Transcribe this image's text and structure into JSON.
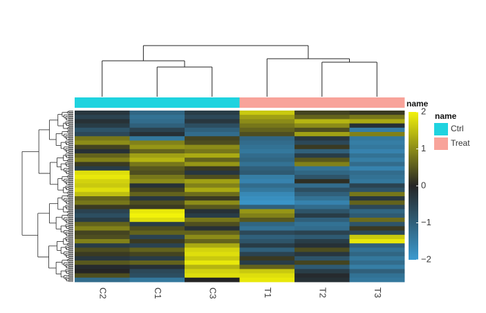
{
  "chart_data": {
    "type": "heatmap",
    "title": "",
    "columns": [
      "C2",
      "C1",
      "C3",
      "T1",
      "T2",
      "T3"
    ],
    "column_annotation": {
      "name": "name",
      "values": [
        "Ctrl",
        "Ctrl",
        "Ctrl",
        "Treat",
        "Treat",
        "Treat"
      ]
    },
    "groups": [
      {
        "name": "Ctrl",
        "color": "#1fd3df"
      },
      {
        "name": "Treat",
        "color": "#f8a39a"
      }
    ],
    "color_scale": {
      "min": -2,
      "max": 2,
      "stops": [
        {
          "value": -2,
          "color": "#3b9bd0"
        },
        {
          "value": 0,
          "color": "#252525"
        },
        {
          "value": 2,
          "color": "#f2f20a"
        }
      ],
      "ticks": [
        {
          "value": 2,
          "label": "2"
        },
        {
          "value": 1,
          "label": "1"
        },
        {
          "value": 0,
          "label": "0"
        },
        {
          "value": -1,
          "label": "−1"
        },
        {
          "value": -2,
          "label": "−2"
        }
      ]
    },
    "row_count": 160,
    "blocks": [
      {
        "rows": 4,
        "values": [
          -0.3,
          -1.1,
          -0.4,
          1.6,
          0.3,
          0.2
        ]
      },
      {
        "rows": 4,
        "values": [
          -0.5,
          -1.3,
          -0.6,
          1.2,
          0.6,
          0.8
        ]
      },
      {
        "rows": 4,
        "values": [
          -0.2,
          -1.2,
          -0.3,
          1.0,
          1.4,
          1.3
        ]
      },
      {
        "rows": 4,
        "values": [
          -0.4,
          -1.0,
          -0.7,
          0.8,
          1.0,
          -0.2
        ]
      },
      {
        "rows": 4,
        "values": [
          -0.8,
          -0.5,
          -1.0,
          0.6,
          0.4,
          -1.5
        ]
      },
      {
        "rows": 4,
        "values": [
          -0.6,
          -0.2,
          -1.2,
          0.4,
          1.2,
          0.9
        ]
      },
      {
        "rows": 4,
        "values": [
          0.8,
          -1.4,
          0.3,
          -1.1,
          -0.3,
          -1.4
        ]
      },
      {
        "rows": 4,
        "values": [
          1.0,
          0.9,
          0.4,
          -1.2,
          -0.6,
          -1.5
        ]
      },
      {
        "rows": 4,
        "values": [
          0.3,
          1.1,
          1.0,
          -1.3,
          0.2,
          -1.4
        ]
      },
      {
        "rows": 4,
        "values": [
          -0.2,
          0.6,
          0.8,
          -1.4,
          -1.0,
          -1.6
        ]
      },
      {
        "rows": 4,
        "values": [
          0.6,
          1.2,
          1.3,
          -1.2,
          -0.4,
          -1.3
        ]
      },
      {
        "rows": 4,
        "values": [
          0.9,
          1.4,
          0.6,
          -1.1,
          0.5,
          -1.5
        ]
      },
      {
        "rows": 4,
        "values": [
          0.2,
          0.8,
          1.1,
          -1.3,
          0.9,
          -1.2
        ]
      },
      {
        "rows": 4,
        "values": [
          -0.4,
          0.5,
          0.2,
          -1.0,
          -1.3,
          -1.6
        ]
      },
      {
        "rows": 4,
        "values": [
          1.8,
          0.4,
          -0.3,
          -0.9,
          -1.1,
          -1.2
        ]
      },
      {
        "rows": 4,
        "values": [
          1.9,
          0.8,
          0.4,
          -1.5,
          -0.8,
          -1.3
        ]
      },
      {
        "rows": 4,
        "values": [
          1.7,
          1.0,
          1.2,
          -1.6,
          0.1,
          -1.4
        ]
      },
      {
        "rows": 4,
        "values": [
          1.6,
          -0.2,
          0.9,
          -1.2,
          -1.2,
          -0.5
        ]
      },
      {
        "rows": 4,
        "values": [
          1.8,
          0.3,
          1.3,
          -1.4,
          -0.7,
          -0.8
        ]
      },
      {
        "rows": 4,
        "values": [
          1.5,
          0.6,
          0.7,
          -1.7,
          -1.0,
          0.8
        ]
      },
      {
        "rows": 4,
        "values": [
          0.6,
          -0.3,
          0.2,
          -1.8,
          -1.3,
          -0.3
        ]
      },
      {
        "rows": 4,
        "values": [
          0.8,
          0.4,
          1.0,
          -1.9,
          -1.6,
          0.6
        ]
      },
      {
        "rows": 4,
        "values": [
          0.2,
          0.2,
          0.5,
          -1.0,
          -1.2,
          -0.6
        ]
      },
      {
        "rows": 4,
        "values": [
          -0.5,
          1.9,
          -0.2,
          1.1,
          -0.8,
          -1.1
        ]
      },
      {
        "rows": 4,
        "values": [
          -0.7,
          2.0,
          -0.4,
          0.9,
          -0.4,
          -0.9
        ]
      },
      {
        "rows": 4,
        "values": [
          -0.4,
          1.8,
          0.8,
          0.5,
          -1.0,
          0.7
        ]
      },
      {
        "rows": 4,
        "values": [
          0.6,
          -0.4,
          0.4,
          -1.1,
          -1.3,
          -0.8
        ]
      },
      {
        "rows": 4,
        "values": [
          0.9,
          0.4,
          -0.2,
          -1.3,
          -1.2,
          0.2
        ]
      },
      {
        "rows": 4,
        "values": [
          0.3,
          0.6,
          0.6,
          -0.6,
          -0.5,
          -0.6
        ]
      },
      {
        "rows": 4,
        "values": [
          0.4,
          -0.5,
          1.0,
          -1.0,
          -0.9,
          1.6
        ]
      },
      {
        "rows": 4,
        "values": [
          0.9,
          0.2,
          0.6,
          -0.8,
          -0.4,
          1.9
        ]
      },
      {
        "rows": 4,
        "values": [
          -0.4,
          -0.5,
          1.3,
          -0.4,
          -0.2,
          -1.0
        ]
      },
      {
        "rows": 4,
        "values": [
          0.4,
          0.6,
          1.7,
          -1.0,
          0.4,
          -1.3
        ]
      },
      {
        "rows": 4,
        "values": [
          0.2,
          0.3,
          1.8,
          -0.5,
          -0.3,
          -1.1
        ]
      },
      {
        "rows": 4,
        "values": [
          -0.3,
          -0.4,
          1.6,
          0.2,
          -0.8,
          -1.4
        ]
      },
      {
        "rows": 4,
        "values": [
          0.5,
          0.6,
          1.9,
          -0.4,
          0.3,
          -1.2
        ]
      },
      {
        "rows": 4,
        "values": [
          -0.1,
          -0.2,
          1.4,
          0.6,
          -0.9,
          -1.5
        ]
      },
      {
        "rows": 4,
        "values": [
          0.0,
          -0.6,
          1.7,
          1.6,
          -0.4,
          -1.0
        ]
      },
      {
        "rows": 4,
        "values": [
          0.4,
          -0.7,
          1.8,
          1.8,
          -0.1,
          -1.3
        ]
      },
      {
        "rows": 4,
        "values": [
          -1.2,
          -1.4,
          0.0,
          1.9,
          -0.2,
          -1.4
        ]
      }
    ]
  }
}
